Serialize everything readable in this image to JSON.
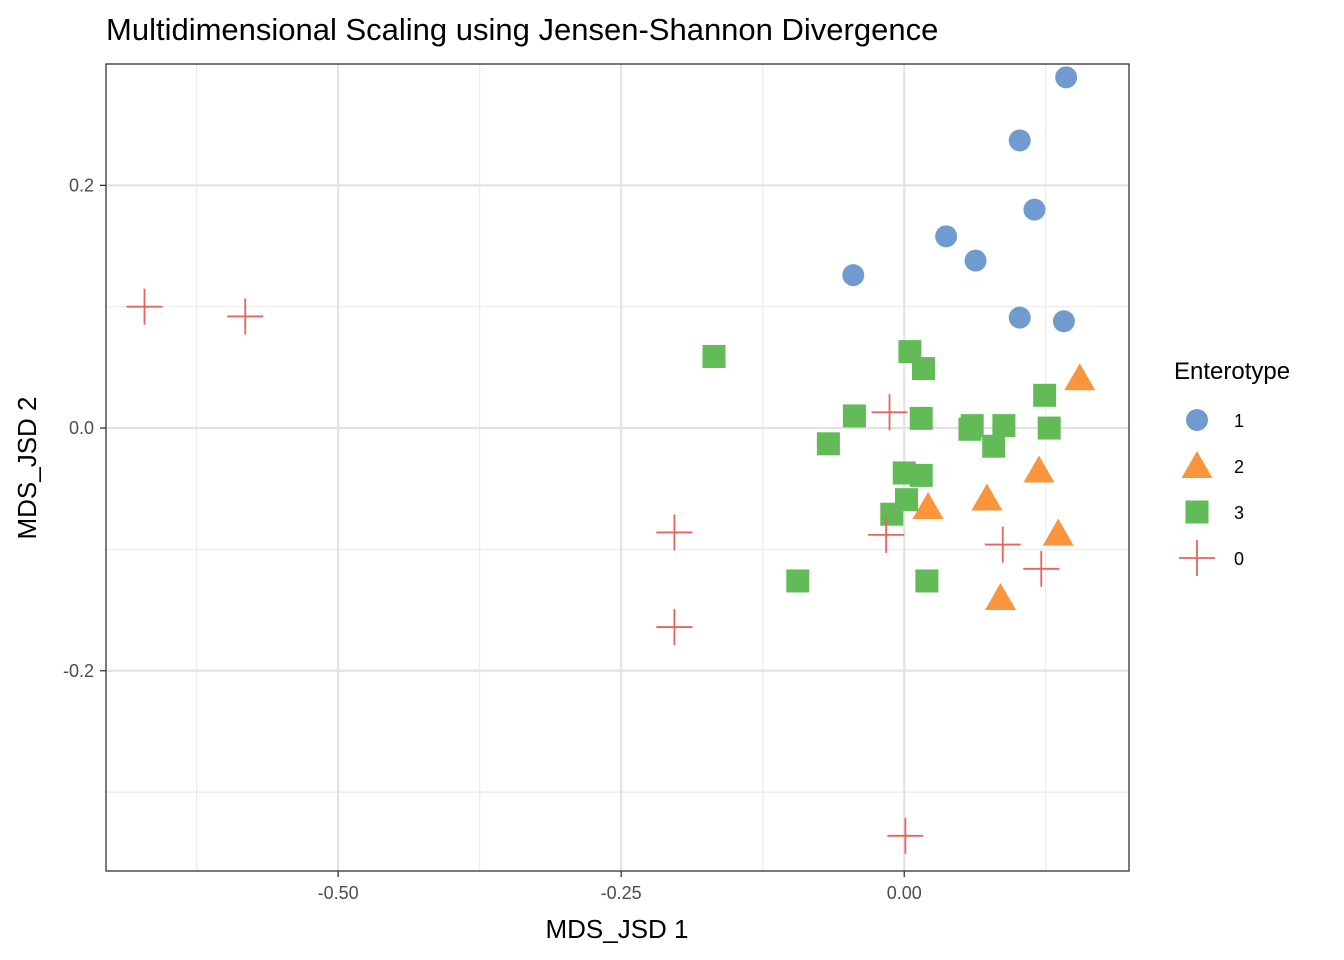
{
  "chart_data": {
    "type": "scatter",
    "title": "Multidimensional Scaling using Jensen-Shannon Divergence",
    "xlabel": "MDS_JSD 1",
    "ylabel": "MDS_JSD 2",
    "xlim": [
      -0.705,
      0.1985
    ],
    "ylim": [
      -0.365,
      0.3
    ],
    "x_ticks": [
      -0.5,
      -0.25,
      0.0
    ],
    "x_tick_labels": [
      "-0.50",
      "-0.25",
      "0.00"
    ],
    "y_ticks": [
      -0.2,
      0.0,
      0.2
    ],
    "y_tick_labels": [
      "-0.2",
      "0.0",
      "0.2"
    ],
    "grid": true,
    "legend": {
      "title": "Enterotype",
      "position": "right"
    },
    "series": [
      {
        "name": "1",
        "shape": "circle",
        "color": "#6f9bcf",
        "points": [
          {
            "x": 0.143,
            "y": 0.289
          },
          {
            "x": 0.102,
            "y": 0.237
          },
          {
            "x": 0.115,
            "y": 0.18
          },
          {
            "x": 0.037,
            "y": 0.158
          },
          {
            "x": 0.063,
            "y": 0.138
          },
          {
            "x": -0.045,
            "y": 0.126
          },
          {
            "x": 0.102,
            "y": 0.091
          },
          {
            "x": 0.141,
            "y": 0.088
          }
        ]
      },
      {
        "name": "2",
        "shape": "triangle",
        "color": "#f9963d",
        "points": [
          {
            "x": 0.155,
            "y": 0.041
          },
          {
            "x": 0.119,
            "y": -0.035
          },
          {
            "x": 0.073,
            "y": -0.058
          },
          {
            "x": 0.021,
            "y": -0.065
          },
          {
            "x": 0.136,
            "y": -0.087
          },
          {
            "x": 0.085,
            "y": -0.14
          }
        ]
      },
      {
        "name": "3",
        "shape": "square",
        "color": "#62bb57",
        "points": [
          {
            "x": -0.168,
            "y": 0.059
          },
          {
            "x": 0.005,
            "y": 0.063
          },
          {
            "x": 0.017,
            "y": 0.049
          },
          {
            "x": 0.124,
            "y": 0.027
          },
          {
            "x": -0.044,
            "y": 0.01
          },
          {
            "x": 0.015,
            "y": 0.008
          },
          {
            "x": 0.06,
            "y": 0.002
          },
          {
            "x": 0.088,
            "y": 0.002
          },
          {
            "x": 0.128,
            "y": 0.0
          },
          {
            "x": 0.058,
            "y": -0.001
          },
          {
            "x": -0.067,
            "y": -0.013
          },
          {
            "x": 0.079,
            "y": -0.015
          },
          {
            "x": 0.0,
            "y": -0.037
          },
          {
            "x": 0.015,
            "y": -0.039
          },
          {
            "x": 0.002,
            "y": -0.059
          },
          {
            "x": -0.011,
            "y": -0.071
          },
          {
            "x": -0.094,
            "y": -0.126
          },
          {
            "x": 0.02,
            "y": -0.126
          }
        ]
      },
      {
        "name": "0",
        "shape": "cross",
        "color": "#e8635f",
        "points": [
          {
            "x": -0.671,
            "y": 0.1
          },
          {
            "x": -0.582,
            "y": 0.092
          },
          {
            "x": -0.013,
            "y": 0.013
          },
          {
            "x": -0.203,
            "y": -0.086
          },
          {
            "x": -0.016,
            "y": -0.088
          },
          {
            "x": 0.087,
            "y": -0.096
          },
          {
            "x": 0.121,
            "y": -0.116
          },
          {
            "x": -0.203,
            "y": -0.164
          },
          {
            "x": 0.001,
            "y": -0.336
          }
        ]
      }
    ]
  }
}
